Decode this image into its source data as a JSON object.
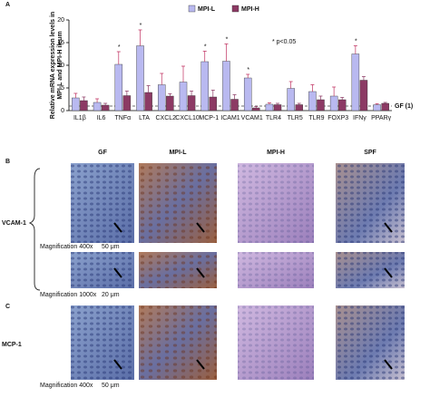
{
  "chart_data": {
    "type": "bar",
    "ylabel": [
      "Relative mRNA expression levels in",
      "MPI-L and MPI-H ileum"
    ],
    "categories": [
      "IL1β",
      "IL6",
      "TNFα",
      "LTA",
      "CXCL2",
      "CXCL10",
      "MCP-1",
      "ICAM1",
      "VCAM1",
      "TLR4",
      "TLR5",
      "TLR9",
      "FOXP3",
      "IFNγ",
      "PPARγ"
    ],
    "series": [
      {
        "name": "MPI-L",
        "color": "#b9b9f0",
        "values": [
          2.8,
          1.8,
          10.2,
          14.3,
          5.7,
          6.3,
          10.8,
          10.9,
          7.2,
          1.4,
          4.9,
          4.2,
          3.2,
          12.5,
          1.3
        ],
        "errors": [
          1.0,
          0.8,
          2.8,
          3.5,
          2.5,
          3.5,
          2.3,
          3.8,
          0.8,
          0.3,
          1.5,
          1.5,
          2.0,
          1.8,
          0.2
        ]
      },
      {
        "name": "MPI-H",
        "color": "#8c3a64",
        "values": [
          2.2,
          1.2,
          3.3,
          4.0,
          3.2,
          3.3,
          3.0,
          2.5,
          0.6,
          1.3,
          1.3,
          2.4,
          2.4,
          6.7,
          1.6
        ],
        "errors": [
          0.8,
          0.4,
          1.0,
          1.5,
          0.5,
          1.0,
          1.5,
          1.0,
          0.3,
          0.3,
          0.3,
          0.8,
          0.5,
          0.8,
          0.2
        ]
      }
    ],
    "significance": [
      null,
      null,
      "*",
      "*",
      null,
      null,
      "*",
      "*",
      "*",
      null,
      null,
      null,
      null,
      "*",
      null
    ],
    "significance_note": "* p<0.05",
    "reference": {
      "value": 1,
      "label": "GF (1)"
    },
    "ylim": [
      0,
      20
    ],
    "yticks": [
      0,
      5,
      10,
      15,
      20
    ],
    "legend": "top"
  },
  "panel_labels": [
    "A",
    "B",
    "C"
  ],
  "histology": {
    "columns": [
      "GF",
      "MPI-L",
      "MPI-H",
      "SPF"
    ],
    "rows": [
      "VCAM-1",
      "MCP-1"
    ],
    "scale_labels": [
      [
        "Magnification 400x",
        "50 μm"
      ],
      [
        "Magnification 1000x",
        "20 μm"
      ],
      [
        "Magnification 400x",
        "50 μm"
      ]
    ]
  }
}
